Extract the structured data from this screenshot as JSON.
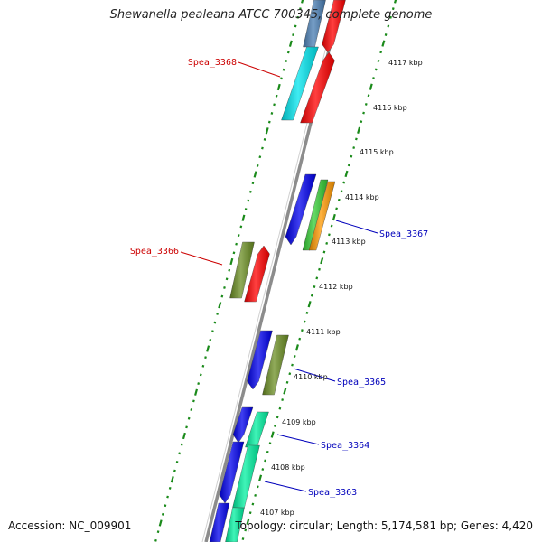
{
  "title": "Shewanella pealeana ATCC 700345, complete genome",
  "footer": {
    "accession": "Accession: NC_009901",
    "topology": "Topology: circular; Length: 5,174,581 bp; Genes: 4,420"
  },
  "colors": {
    "backbone": "#8c8c8c",
    "tick_dots": "#1a8a1a",
    "label_reverse": "#cc0000",
    "label_forward": "#0000bb"
  },
  "ticks": [
    "4117 kbp",
    "4116 kbp",
    "4115 kbp",
    "4114 kbp",
    "4113 kbp",
    "4112 kbp",
    "4111 kbp",
    "4110 kbp",
    "4109 kbp",
    "4108 kbp",
    "4107 kbp"
  ],
  "gene_labels": [
    {
      "name": "Spea_3368",
      "strand": "reverse"
    },
    {
      "name": "Spea_3366",
      "strand": "reverse"
    },
    {
      "name": "Spea_3367",
      "strand": "forward"
    },
    {
      "name": "Spea_3365",
      "strand": "forward"
    },
    {
      "name": "Spea_3364",
      "strand": "forward"
    },
    {
      "name": "Spea_3363",
      "strand": "forward"
    }
  ],
  "features": [
    {
      "name": "steelblue-block",
      "color": "#4a7fb5"
    },
    {
      "name": "red-arrow-top",
      "color": "#ff0000"
    },
    {
      "name": "cyan-block-spea3368",
      "color": "#00e5ee"
    },
    {
      "name": "red-arrow-spea3368",
      "color": "#ff0000"
    },
    {
      "name": "blue-arrow-4114",
      "color": "#0000ee"
    },
    {
      "name": "green-block-4114",
      "color": "#33cc33"
    },
    {
      "name": "orange-block-4114",
      "color": "#ff9900"
    },
    {
      "name": "olive-block-spea3366",
      "color": "#6b8e23"
    },
    {
      "name": "red-arrow-spea3366",
      "color": "#ff0000"
    },
    {
      "name": "blue-arrow-4111",
      "color": "#0000ee"
    },
    {
      "name": "olive-block-4111",
      "color": "#6b8e23"
    },
    {
      "name": "blue-arrow-4109",
      "color": "#0000ee"
    },
    {
      "name": "aquamarine-block-4109",
      "color": "#00f0a0"
    },
    {
      "name": "blue-arrow-4108",
      "color": "#0000ee"
    },
    {
      "name": "aquamarine-block-4108",
      "color": "#00f0a0"
    },
    {
      "name": "blue-arrow-4107",
      "color": "#0000ee"
    },
    {
      "name": "aquamarine-block-4107",
      "color": "#00f0a0"
    }
  ]
}
